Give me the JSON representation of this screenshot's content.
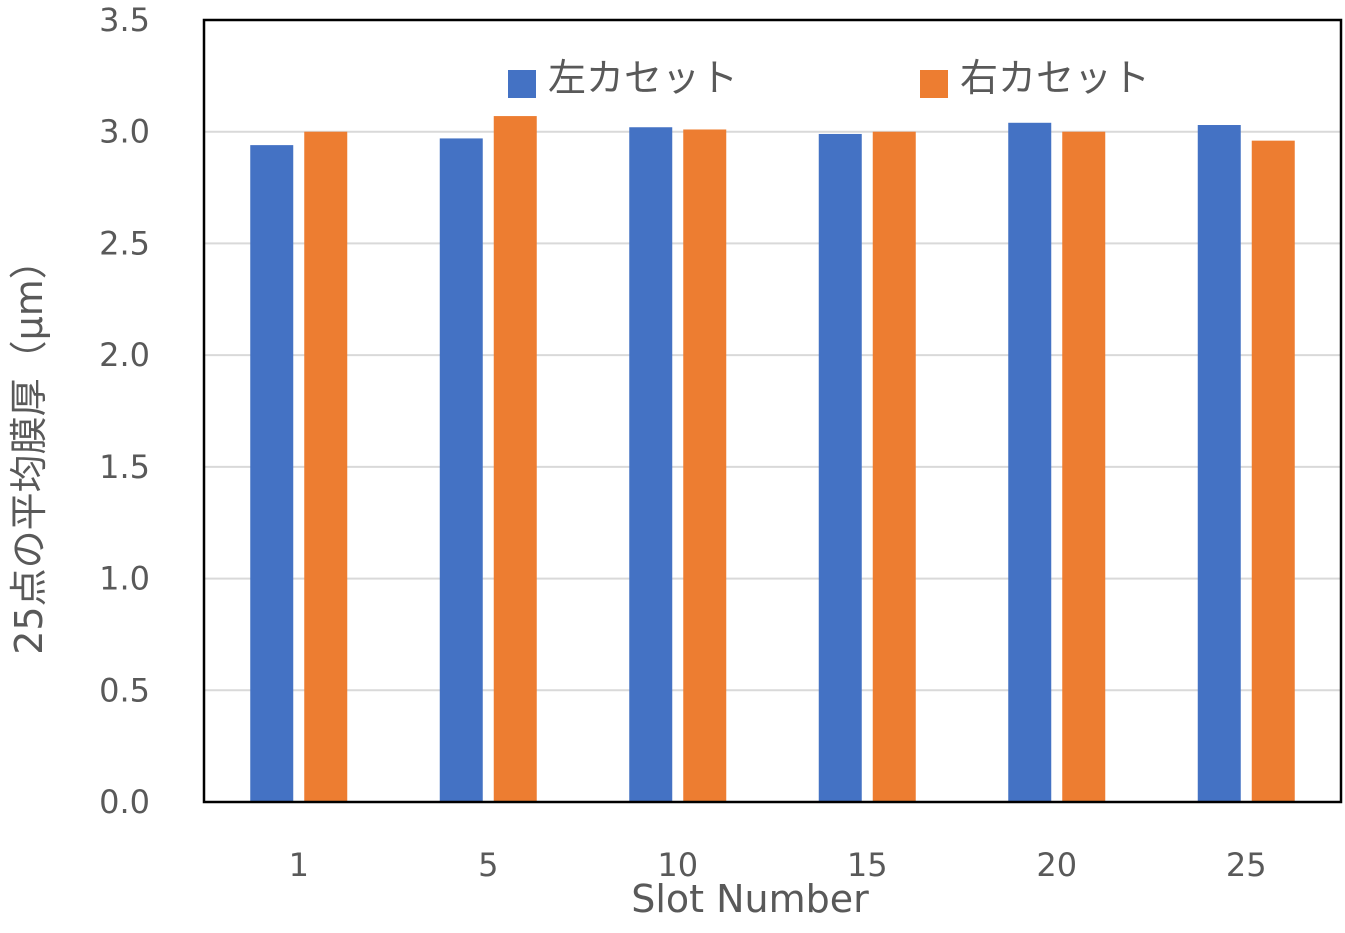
{
  "chart_data": {
    "type": "bar",
    "title": "",
    "xlabel": "Slot Number",
    "ylabel": "25点の平均膜厚（μm）",
    "categories": [
      "1",
      "5",
      "10",
      "15",
      "20",
      "25"
    ],
    "series": [
      {
        "name": "左カセット",
        "color": "#4472C4",
        "values": [
          2.94,
          2.97,
          3.02,
          2.99,
          3.04,
          3.03
        ]
      },
      {
        "name": "右カセット",
        "color": "#ED7D31",
        "values": [
          3.0,
          3.07,
          3.01,
          3.0,
          3.0,
          2.96
        ]
      }
    ],
    "ylim": [
      0,
      3.5
    ],
    "yticks": [
      "0.0",
      "0.5",
      "1.0",
      "1.5",
      "2.0",
      "2.5",
      "3.0",
      "3.5"
    ],
    "grid": true,
    "legend_position": "top"
  }
}
